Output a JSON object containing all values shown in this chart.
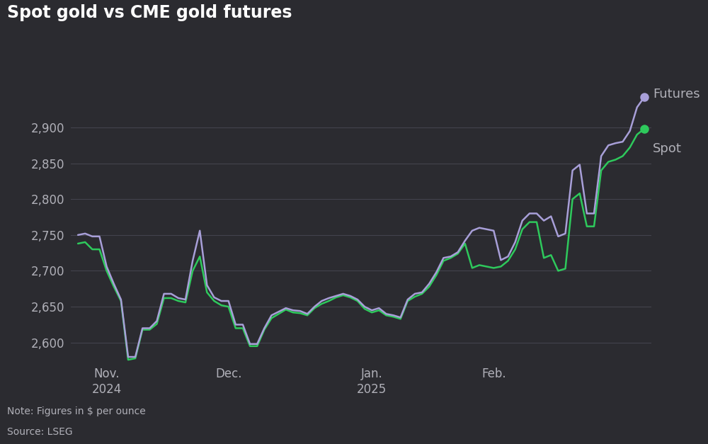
{
  "title": "Spot gold vs CME gold futures",
  "note": "Note: Figures in $ per ounce",
  "source": "Source: LSEG",
  "background_color": "#2b2b30",
  "grid_color": "#4a4a55",
  "text_color": "#b0b0b8",
  "title_color": "#ffffff",
  "futures_color": "#a89fd8",
  "spot_color": "#2ec95c",
  "ylim": [
    2570,
    2960
  ],
  "yticks": [
    2600,
    2650,
    2700,
    2750,
    2800,
    2850,
    2900
  ],
  "futures_data": [
    2750,
    2752,
    2748,
    2748,
    2706,
    2682,
    2660,
    2580,
    2580,
    2620,
    2620,
    2630,
    2668,
    2668,
    2662,
    2660,
    2714,
    2756,
    2680,
    2663,
    2658,
    2658,
    2625,
    2625,
    2598,
    2598,
    2620,
    2638,
    2643,
    2648,
    2645,
    2644,
    2640,
    2650,
    2658,
    2662,
    2665,
    2668,
    2665,
    2660,
    2650,
    2645,
    2648,
    2640,
    2638,
    2635,
    2660,
    2668,
    2670,
    2682,
    2698,
    2718,
    2720,
    2726,
    2742,
    2756,
    2760,
    2758,
    2756,
    2715,
    2720,
    2740,
    2770,
    2780,
    2780,
    2770,
    2776,
    2748,
    2752,
    2840,
    2848,
    2780,
    2780,
    2860,
    2875,
    2878,
    2880,
    2895,
    2928,
    2942
  ],
  "spot_data": [
    2738,
    2740,
    2730,
    2730,
    2700,
    2678,
    2658,
    2576,
    2578,
    2618,
    2618,
    2626,
    2662,
    2662,
    2658,
    2656,
    2700,
    2720,
    2670,
    2658,
    2652,
    2650,
    2620,
    2620,
    2595,
    2595,
    2618,
    2634,
    2640,
    2646,
    2642,
    2641,
    2638,
    2648,
    2654,
    2658,
    2663,
    2666,
    2663,
    2658,
    2647,
    2642,
    2645,
    2638,
    2636,
    2633,
    2658,
    2664,
    2668,
    2678,
    2694,
    2714,
    2718,
    2724,
    2738,
    2704,
    2708,
    2706,
    2704,
    2706,
    2714,
    2730,
    2758,
    2768,
    2768,
    2718,
    2722,
    2700,
    2703,
    2800,
    2808,
    2762,
    2762,
    2840,
    2852,
    2855,
    2860,
    2872,
    2890,
    2898
  ],
  "x_tick_positions": [
    4,
    21,
    41,
    58
  ],
  "x_tick_labels": [
    "Nov.\n2024",
    "Dec.",
    "Jan.\n2025",
    "Feb."
  ],
  "legend_labels": [
    "Futures",
    "Spot"
  ]
}
